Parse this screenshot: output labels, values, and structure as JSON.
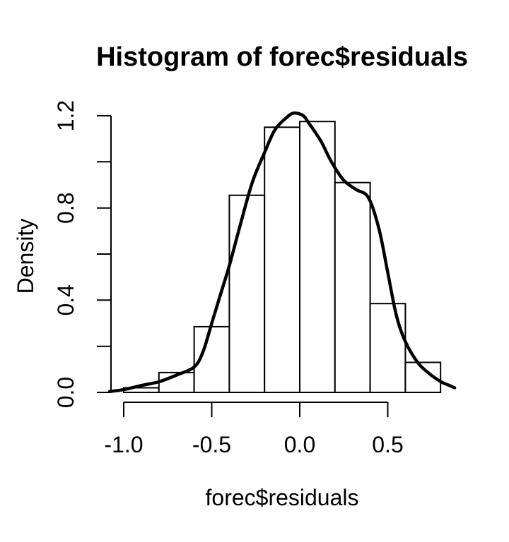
{
  "title": "Histogram of forec$residuals",
  "colors": {
    "foreground": "#000000",
    "background": "#ffffff",
    "bar_fill": "#ffffff",
    "bar_border": "#000000",
    "curve": "#000000"
  },
  "chart_data": {
    "type": "bar",
    "subtype": "histogram_with_density_curve",
    "title": "Histogram of forec$residuals",
    "xlabel": "forec$residuals",
    "ylabel": "Density",
    "xlim": [
      -1.08,
      0.9
    ],
    "ylim": [
      0.0,
      1.2
    ],
    "grid": false,
    "legend": "none",
    "x_ticks": [
      -1.0,
      -0.5,
      0.0,
      0.5
    ],
    "x_tick_labels": [
      "-1.0",
      "-0.5",
      "0.0",
      "0.5"
    ],
    "y_ticks": [
      0.0,
      0.2,
      0.4,
      0.6,
      0.8,
      1.0,
      1.2
    ],
    "y_tick_labels": [
      "0.0",
      "",
      "0.4",
      "",
      "0.8",
      "",
      "1.2"
    ],
    "bins": {
      "start": -1.0,
      "width": 0.2,
      "edges": [
        -1.0,
        -0.8,
        -0.6,
        -0.4,
        -0.2,
        0.0,
        0.2,
        0.4,
        0.6,
        0.8
      ],
      "densities": [
        0.02,
        0.086,
        0.285,
        0.855,
        1.15,
        1.175,
        0.91,
        0.385,
        0.13
      ]
    },
    "density_curve": [
      [
        -1.08,
        0.004
      ],
      [
        -1.0,
        0.012
      ],
      [
        -0.9,
        0.03
      ],
      [
        -0.8,
        0.046
      ],
      [
        -0.7,
        0.075
      ],
      [
        -0.6,
        0.11
      ],
      [
        -0.55,
        0.175
      ],
      [
        -0.5,
        0.3
      ],
      [
        -0.45,
        0.425
      ],
      [
        -0.4,
        0.55
      ],
      [
        -0.34,
        0.72
      ],
      [
        -0.27,
        0.91
      ],
      [
        -0.2,
        1.04
      ],
      [
        -0.14,
        1.14
      ],
      [
        -0.07,
        1.195
      ],
      [
        -0.03,
        1.212
      ],
      [
        0.02,
        1.2
      ],
      [
        0.05,
        1.17
      ],
      [
        0.12,
        1.09
      ],
      [
        0.18,
        1.0
      ],
      [
        0.25,
        0.92
      ],
      [
        0.32,
        0.88
      ],
      [
        0.39,
        0.845
      ],
      [
        0.45,
        0.71
      ],
      [
        0.5,
        0.52
      ],
      [
        0.55,
        0.33
      ],
      [
        0.6,
        0.22
      ],
      [
        0.67,
        0.13
      ],
      [
        0.73,
        0.085
      ],
      [
        0.8,
        0.047
      ],
      [
        0.85,
        0.03
      ],
      [
        0.88,
        0.02
      ]
    ]
  }
}
